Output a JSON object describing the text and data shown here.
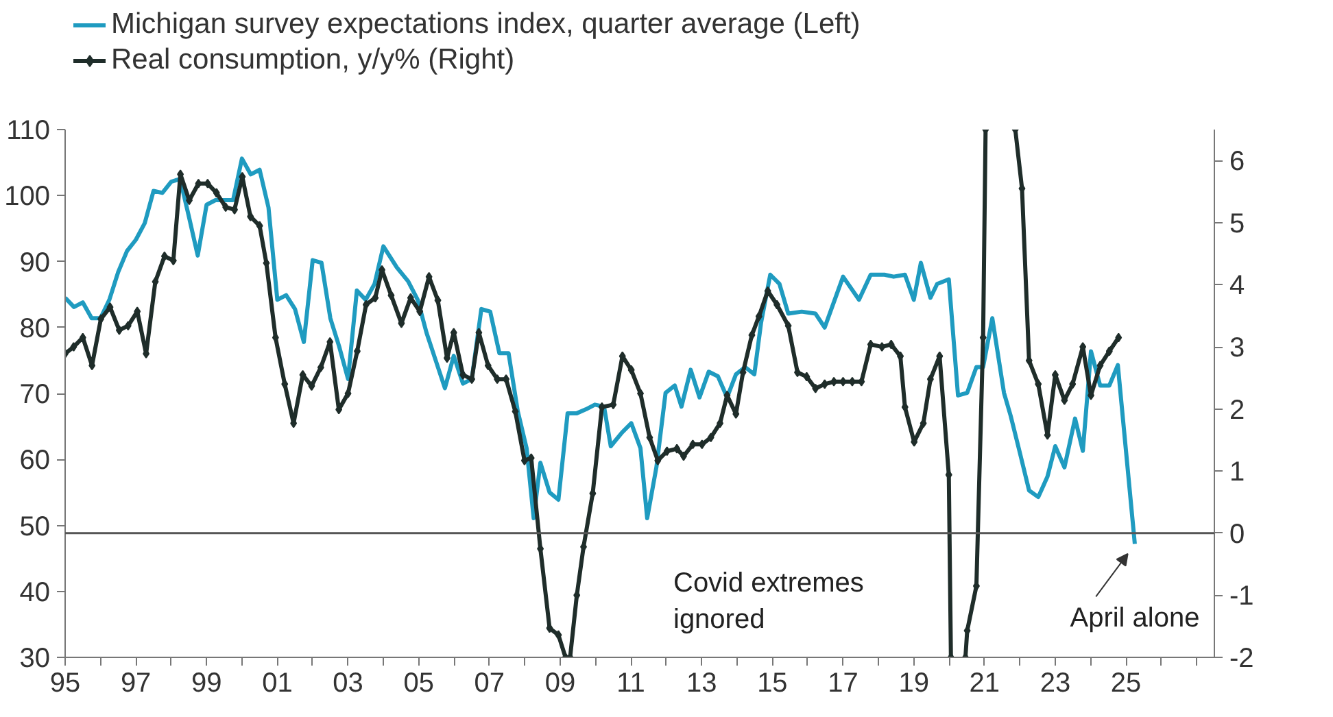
{
  "chart_data": {
    "type": "line",
    "legend": "top left",
    "grid": false,
    "xlim": [
      1995,
      2027.5
    ],
    "xticks": [
      {
        "value": 1995,
        "label": "95"
      },
      {
        "value": 1996,
        "label": null
      },
      {
        "value": 1997,
        "label": "97"
      },
      {
        "value": 1998,
        "label": null
      },
      {
        "value": 1999,
        "label": "99"
      },
      {
        "value": 2000,
        "label": null
      },
      {
        "value": 2001,
        "label": "01"
      },
      {
        "value": 2002,
        "label": null
      },
      {
        "value": 2003,
        "label": "03"
      },
      {
        "value": 2004,
        "label": null
      },
      {
        "value": 2005,
        "label": "05"
      },
      {
        "value": 2006,
        "label": null
      },
      {
        "value": 2007,
        "label": "07"
      },
      {
        "value": 2008,
        "label": null
      },
      {
        "value": 2009,
        "label": "09"
      },
      {
        "value": 2010,
        "label": null
      },
      {
        "value": 2011,
        "label": "11"
      },
      {
        "value": 2012,
        "label": null
      },
      {
        "value": 2013,
        "label": "13"
      },
      {
        "value": 2014,
        "label": null
      },
      {
        "value": 2015,
        "label": "15"
      },
      {
        "value": 2016,
        "label": null
      },
      {
        "value": 2017,
        "label": "17"
      },
      {
        "value": 2018,
        "label": null
      },
      {
        "value": 2019,
        "label": "19"
      },
      {
        "value": 2020,
        "label": null
      },
      {
        "value": 2021,
        "label": "21"
      },
      {
        "value": 2022,
        "label": null
      },
      {
        "value": 2023,
        "label": "23"
      },
      {
        "value": 2024,
        "label": null
      },
      {
        "value": 2025,
        "label": "25"
      },
      {
        "value": 2026,
        "label": null
      },
      {
        "value": 2027,
        "label": null
      }
    ],
    "ylim": [
      30,
      110
    ],
    "yticks": [
      30,
      40,
      50,
      60,
      70,
      80,
      90,
      100,
      110
    ],
    "y2lim": [
      -2,
      6.5
    ],
    "y2ticks": [
      -2,
      -1,
      0,
      1,
      2,
      3,
      4,
      5,
      6
    ],
    "ref_lines": [
      {
        "axis": "y2",
        "value": 0,
        "color": "#555555"
      }
    ],
    "annotations": [
      "Covid extremes\nignored",
      {
        "text": "April alone",
        "x": 2025.25,
        "y": 47.2
      }
    ],
    "series": [
      {
        "name": "Michigan survey expectations index, quarter average (Left)",
        "color": "#1f9bc0",
        "marker": "none",
        "x": [
          1995.0,
          1995.25,
          1995.5,
          1995.75,
          1996.0,
          1996.25,
          1996.5,
          1996.75,
          1997.0,
          1997.25,
          1997.5,
          1997.75,
          1998.0,
          1998.25,
          1998.5,
          1998.75,
          1999.0,
          1999.25,
          1999.5,
          1999.75,
          2000.0,
          2000.25,
          2000.5,
          2000.75,
          2001.0,
          2001.25,
          2001.5,
          2001.75,
          2002.0,
          2002.25,
          2002.5,
          2002.75,
          2003.0,
          2003.25,
          2003.5,
          2003.75,
          2004.0,
          2004.38,
          2004.7,
          2004.97,
          2005.22,
          2005.48,
          2005.74,
          2005.99,
          2006.25,
          2006.5,
          2006.77,
          2007.02,
          2007.28,
          2007.54,
          2007.8,
          2008.05,
          2008.25,
          2008.44,
          2008.7,
          2008.95,
          2009.21,
          2009.47,
          2009.73,
          2009.98,
          2010.24,
          2010.43,
          2010.75,
          2011.01,
          2011.27,
          2011.46,
          2011.72,
          2011.98,
          2012.24,
          2012.43,
          2012.69,
          2012.94,
          2013.2,
          2013.46,
          2013.72,
          2013.97,
          2014.23,
          2014.49,
          2014.68,
          2014.94,
          2015.2,
          2015.45,
          2015.83,
          2016.22,
          2016.48,
          2017.0,
          2017.45,
          2017.78,
          2018.17,
          2018.43,
          2018.75,
          2019.0,
          2019.2,
          2019.47,
          2019.66,
          2019.99,
          2020.25,
          2020.51,
          2020.77,
          2020.96,
          2021.22,
          2021.55,
          2021.74,
          2022.0,
          2022.26,
          2022.52,
          2022.78,
          2023.0,
          2023.26,
          2023.56,
          2023.78,
          2024.01,
          2024.27,
          2024.53,
          2024.77,
          2025.25
        ],
        "values": [
          84.5,
          83.1,
          83.8,
          81.4,
          81.4,
          84.2,
          88.4,
          91.6,
          93.3,
          95.8,
          100.7,
          100.4,
          102.1,
          102.5,
          96.8,
          90.9,
          98.6,
          99.3,
          99.3,
          99.3,
          105.6,
          103.2,
          103.9,
          98.2,
          84.2,
          84.9,
          82.8,
          77.8,
          90.2,
          89.8,
          81.4,
          77.1,
          72.2,
          85.6,
          84.2,
          86.6,
          92.3,
          89.1,
          87.0,
          84.2,
          79.2,
          75.0,
          70.8,
          75.7,
          71.5,
          72.2,
          82.8,
          82.4,
          76.1,
          76.1,
          67.3,
          61.7,
          51.1,
          59.5,
          55.0,
          53.9,
          67.0,
          67.0,
          67.6,
          68.3,
          68.0,
          62.0,
          64.1,
          65.5,
          61.7,
          51.1,
          58.8,
          70.1,
          71.2,
          68.0,
          73.6,
          69.4,
          73.3,
          72.6,
          69.4,
          72.9,
          74.0,
          72.9,
          80.7,
          88.0,
          86.6,
          82.1,
          82.4,
          82.1,
          80.0,
          87.7,
          84.2,
          88.0,
          88.0,
          87.7,
          88.0,
          84.2,
          89.8,
          84.5,
          86.6,
          87.3,
          69.7,
          70.1,
          74.0,
          74.0,
          81.4,
          70.1,
          66.6,
          61.0,
          55.3,
          54.3,
          57.4,
          62.0,
          58.8,
          66.2,
          61.3,
          76.4,
          71.2,
          71.2,
          74.3,
          47.2
        ]
      },
      {
        "name": "Real consumption, y/y% (Right)",
        "color": "#1f2d2a",
        "marker": "diamond",
        "axis": "y2",
        "x": [
          1995.0,
          1995.24,
          1995.5,
          1995.76,
          1996.01,
          1996.27,
          1996.53,
          1996.78,
          1997.04,
          1997.29,
          1997.55,
          1997.81,
          1998.06,
          1998.26,
          1998.51,
          1998.77,
          1999.03,
          1999.28,
          1999.54,
          1999.79,
          2000.01,
          2000.24,
          2000.5,
          2000.69,
          2000.95,
          2001.21,
          2001.46,
          2001.72,
          2001.97,
          2002.23,
          2002.49,
          2002.74,
          2003.0,
          2003.26,
          2003.51,
          2003.77,
          2003.96,
          2004.22,
          2004.51,
          2004.77,
          2005.03,
          2005.29,
          2005.54,
          2005.8,
          2005.99,
          2006.25,
          2006.5,
          2006.7,
          2006.96,
          2007.22,
          2007.47,
          2007.73,
          2007.99,
          2008.18,
          2008.44,
          2008.7,
          2008.95,
          2009.15,
          2009.28,
          2009.47,
          2009.66,
          2009.92,
          2010.18,
          2010.5,
          2010.76,
          2011.01,
          2011.27,
          2011.53,
          2011.76,
          2012.02,
          2012.3,
          2012.49,
          2012.75,
          2013.01,
          2013.26,
          2013.52,
          2013.72,
          2013.97,
          2014.17,
          2014.42,
          2014.62,
          2014.87,
          2015.13,
          2015.45,
          2015.71,
          2015.97,
          2016.22,
          2016.48,
          2016.74,
          2017.0,
          2017.26,
          2017.52,
          2017.78,
          2018.1,
          2018.36,
          2018.62,
          2018.75,
          2019.01,
          2019.27,
          2019.47,
          2019.73,
          2019.99,
          2020.05,
          2020.25,
          2020.46,
          2020.51,
          2020.77,
          2020.96,
          2021.03,
          2021.45,
          2021.87,
          2022.06,
          2022.26,
          2022.52,
          2022.78,
          2023.0,
          2023.26,
          2023.49,
          2023.78,
          2024.01,
          2024.27,
          2024.53,
          2024.79
        ],
        "values": [
          2.89,
          3.0,
          3.15,
          2.7,
          3.45,
          3.64,
          3.27,
          3.34,
          3.57,
          2.89,
          4.05,
          4.46,
          4.39,
          5.78,
          5.36,
          5.63,
          5.63,
          5.48,
          5.25,
          5.21,
          5.74,
          5.1,
          4.95,
          4.35,
          3.15,
          2.4,
          1.77,
          2.55,
          2.37,
          2.67,
          3.08,
          1.99,
          2.25,
          2.93,
          3.68,
          3.79,
          4.24,
          3.83,
          3.38,
          3.79,
          3.57,
          4.13,
          3.75,
          2.82,
          3.23,
          2.55,
          2.48,
          3.23,
          2.7,
          2.48,
          2.48,
          1.96,
          1.17,
          1.21,
          -0.25,
          -1.53,
          -1.64,
          -2.0,
          -2.0,
          -1.0,
          -0.22,
          0.64,
          2.03,
          2.07,
          2.85,
          2.63,
          2.25,
          1.54,
          1.17,
          1.32,
          1.36,
          1.24,
          1.43,
          1.43,
          1.54,
          1.77,
          2.22,
          1.92,
          2.59,
          3.19,
          3.49,
          3.9,
          3.68,
          3.34,
          2.59,
          2.52,
          2.33,
          2.4,
          2.44,
          2.44,
          2.44,
          2.44,
          3.04,
          3.0,
          3.04,
          2.85,
          2.03,
          1.47,
          1.77,
          2.48,
          2.85,
          0.94,
          -2.0,
          null,
          -2.0,
          -1.57,
          -0.85,
          3.15,
          6.5,
          null,
          6.5,
          5.55,
          2.78,
          2.4,
          1.58,
          2.55,
          2.14,
          2.4,
          3.0,
          2.22,
          2.7,
          2.93,
          3.15
        ]
      }
    ]
  }
}
